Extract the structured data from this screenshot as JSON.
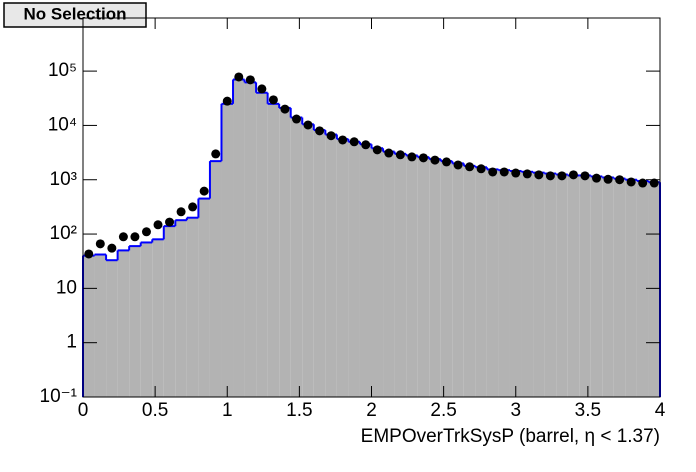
{
  "ui": {
    "button": "No Selection"
  },
  "chart_data": {
    "type": "histogram",
    "x_label": "EMPOverTrkSysP (barrel,   η < 1.37)",
    "bins": [
      0,
      0.08,
      0.16,
      0.24,
      0.32,
      0.4,
      0.48,
      0.56,
      0.64,
      0.72,
      0.8,
      0.88,
      0.96,
      1.04,
      1.12,
      1.2,
      1.28,
      1.36,
      1.44,
      1.52,
      1.6,
      1.68,
      1.76,
      1.84,
      1.92,
      2,
      2.08,
      2.16,
      2.24,
      2.32,
      2.4,
      2.48,
      2.56,
      2.64,
      2.72,
      2.8,
      2.88,
      2.96,
      3.04,
      3.12,
      3.2,
      3.28,
      3.36,
      3.44,
      3.52,
      3.6,
      3.68,
      3.76,
      3.84,
      3.92,
      4
    ],
    "series": [
      {
        "style": "filled-step",
        "color": "#0000ff",
        "fill": "#b3b3b3",
        "values": [
          40,
          42,
          33,
          50,
          60,
          70,
          80,
          140,
          180,
          200,
          450,
          2200,
          25000,
          70000,
          62000,
          40000,
          25000,
          21000,
          14000,
          10500,
          8200,
          6800,
          5600,
          5000,
          4500,
          3800,
          3300,
          3000,
          2800,
          2600,
          2400,
          2200,
          2000,
          1800,
          1700,
          1550,
          1500,
          1450,
          1400,
          1350,
          1300,
          1250,
          1200,
          1200,
          1150,
          1100,
          1050,
          1000,
          950,
          900
        ]
      },
      {
        "style": "markers",
        "color": "#000000",
        "values": [
          43,
          66,
          55,
          89,
          89,
          110,
          148,
          166,
          257,
          316,
          617,
          2990,
          28000,
          78000,
          69000,
          47000,
          29600,
          20000,
          13100,
          10200,
          7940,
          6460,
          5400,
          5000,
          4400,
          3550,
          3100,
          2880,
          2630,
          2530,
          2300,
          2130,
          1870,
          1730,
          1590,
          1390,
          1390,
          1330,
          1280,
          1230,
          1180,
          1180,
          1230,
          1180,
          1070,
          1020,
          1000,
          910,
          870,
          870
        ]
      }
    ],
    "xlim": [
      0,
      4
    ],
    "xticks": [
      0,
      0.5,
      1,
      1.5,
      2,
      2.5,
      3,
      3.5,
      4
    ],
    "ylim": [
      0.1,
      950000
    ],
    "log_y": true,
    "yticks": [
      {
        "value": 0.1,
        "label": "10⁻¹"
      },
      1,
      10,
      {
        "value": 100,
        "label": "10²"
      },
      {
        "value": 1000,
        "label": "10³"
      },
      {
        "value": 10000,
        "label": "10⁴"
      },
      {
        "value": 100000,
        "label": "10⁵"
      }
    ]
  }
}
